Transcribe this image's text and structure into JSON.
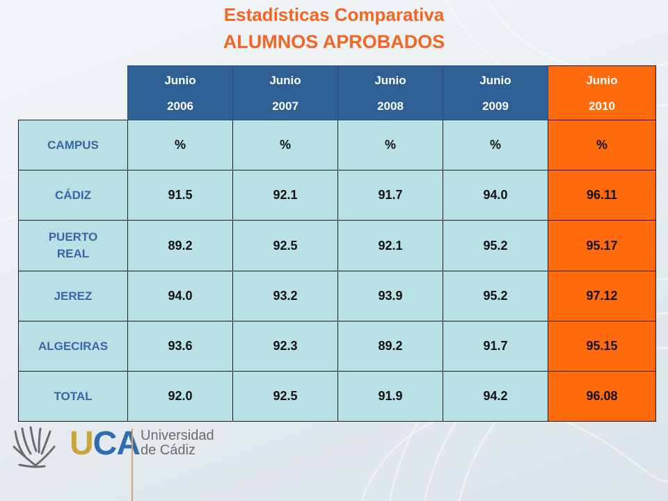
{
  "title": "Estadísticas Comparativa",
  "subtitle": "ALUMNOS APROBADOS",
  "colors": {
    "accent": "#f26522",
    "header_blue": "#2e6096",
    "highlight": "#ff6a0d",
    "cell_bg": "#b9e0e4",
    "label_blue": "#3a64a6"
  },
  "table": {
    "headers": [
      {
        "line1": "Junio",
        "line2": "2006"
      },
      {
        "line1": "Junio",
        "line2": "2007"
      },
      {
        "line1": "Junio",
        "line2": "2008"
      },
      {
        "line1": "Junio",
        "line2": "2009"
      },
      {
        "line1": "Junio",
        "line2": "2010"
      }
    ],
    "rows": [
      {
        "label": "CAMPUS",
        "values": [
          "%",
          "%",
          "%",
          "%",
          "%"
        ]
      },
      {
        "label": "CÁDIZ",
        "values": [
          "91.5",
          "92.1",
          "91.7",
          "94.0",
          "96.11"
        ]
      },
      {
        "label": "PUERTO REAL",
        "values": [
          "89.2",
          "92.5",
          "92.1",
          "95.2",
          "95.17"
        ]
      },
      {
        "label": "JEREZ",
        "values": [
          "94.0",
          "93.2",
          "93.9",
          "95.2",
          "97.12"
        ]
      },
      {
        "label": "ALGECIRAS",
        "values": [
          "93.6",
          "92.3",
          "89.2",
          "91.7",
          "95.15"
        ]
      },
      {
        "label": "TOTAL",
        "values": [
          "92.0",
          "92.5",
          "91.9",
          "94.2",
          "96.08"
        ]
      }
    ]
  },
  "logo": {
    "uca_u": "U",
    "uca_ca": "CA",
    "name_line1": "Universidad",
    "name_line2": "de Cádiz",
    "mark_icon": "uca-emblem-icon"
  }
}
